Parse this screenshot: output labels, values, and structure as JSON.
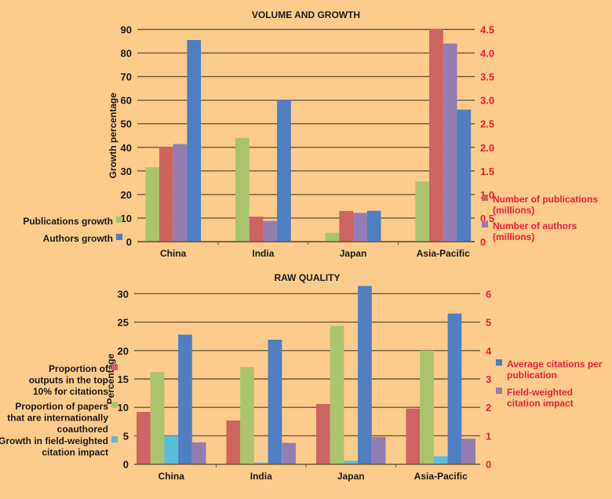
{
  "colors": {
    "background": "#FDCB8C",
    "grid": "#6B5A3A",
    "axis_text": "#1A1A1A",
    "right_axis_text": "#E8203A",
    "green": "#A9C46C",
    "red": "#CD6460",
    "purple": "#937DB3",
    "blue": "#4F7EC1",
    "cyan": "#59BDD7"
  },
  "chart_data": [
    {
      "type": "bar",
      "title": "VOLUME AND GROWTH",
      "categories": [
        "China",
        "India",
        "Japan",
        "Asia-Pacific"
      ],
      "ylabel": "Growth percentage",
      "ylim": [
        0,
        90
      ],
      "yticks": [
        "0",
        "10",
        "20",
        "30",
        "40",
        "50",
        "60",
        "70",
        "80",
        "90"
      ],
      "y2lim": [
        0,
        4.5
      ],
      "y2ticks": [
        "0",
        "0.5",
        "1.0",
        "1.5",
        "2.0",
        "2.5",
        "3.0",
        "3.5",
        "4.0",
        "4.5"
      ],
      "grid": true,
      "series": [
        {
          "name": "Publications growth",
          "axis": "left",
          "color": "green",
          "values": [
            31.5,
            44,
            3.8,
            25.5
          ]
        },
        {
          "name": "Number of publications (millions)",
          "axis": "right",
          "color": "red",
          "values": [
            2.01,
            0.53,
            0.65,
            4.51
          ]
        },
        {
          "name": "Number of authors (millions)",
          "axis": "right",
          "color": "purple",
          "values": [
            2.07,
            0.44,
            0.61,
            4.2
          ]
        },
        {
          "name": "Authors growth",
          "axis": "left",
          "color": "blue",
          "values": [
            85.5,
            60.2,
            13.1,
            56
          ]
        }
      ],
      "legend_left": [
        {
          "label": "Publications growth",
          "color": "green"
        },
        {
          "label": "Authors growth",
          "color": "blue"
        }
      ],
      "legend_right": [
        {
          "line1": "Number of publications",
          "line2": "(millions)",
          "color": "red"
        },
        {
          "line1": "Number of authors",
          "line2": "(millions)",
          "color": "purple"
        }
      ]
    },
    {
      "type": "bar",
      "title": "RAW QUALITY",
      "categories": [
        "China",
        "India",
        "Japan",
        "Asia-Pacific"
      ],
      "ylabel": "Percentage",
      "ylim": [
        0,
        30
      ],
      "yticks": [
        "0",
        "5",
        "10",
        "15",
        "20",
        "25",
        "30"
      ],
      "y2lim": [
        0,
        6
      ],
      "y2ticks": [
        "0",
        "1",
        "2",
        "3",
        "4",
        "5",
        "6"
      ],
      "grid": true,
      "series": [
        {
          "name": "Proportion of outputs in the top 10% for citations",
          "axis": "left",
          "color": "red",
          "values": [
            9.2,
            7.7,
            10.6,
            9.8
          ]
        },
        {
          "name": "Proportion of papers that are internationally coauthored",
          "axis": "left",
          "color": "green",
          "values": [
            16.2,
            17.1,
            24.3,
            20.0
          ]
        },
        {
          "name": "Growth in field-weighted citation impact",
          "axis": "left",
          "color": "cyan",
          "values": [
            5.0,
            0.3,
            0.6,
            1.4
          ]
        },
        {
          "name": "Average citations per publication",
          "axis": "right",
          "color": "blue",
          "values": [
            4.56,
            4.38,
            6.27,
            5.3
          ]
        },
        {
          "name": "Field-weighted citation impact",
          "axis": "right",
          "color": "purple",
          "values": [
            0.77,
            0.75,
            0.96,
            0.9
          ]
        }
      ],
      "legend_left": [
        {
          "lines": [
            "Proportion of",
            "outputs in the top",
            "10% for citations"
          ],
          "color": "red"
        },
        {
          "lines": [
            "Proportion of papers",
            "that are internationally",
            "coauthored"
          ],
          "color": "green"
        },
        {
          "lines": [
            "Growth in field-weighted",
            "citation impact"
          ],
          "color": "cyan"
        }
      ],
      "legend_right": [
        {
          "line1": "Average citations per",
          "line2": "publication",
          "color": "blue"
        },
        {
          "line1": "Field-weighted",
          "line2": "citation impact",
          "color": "purple"
        }
      ]
    }
  ]
}
